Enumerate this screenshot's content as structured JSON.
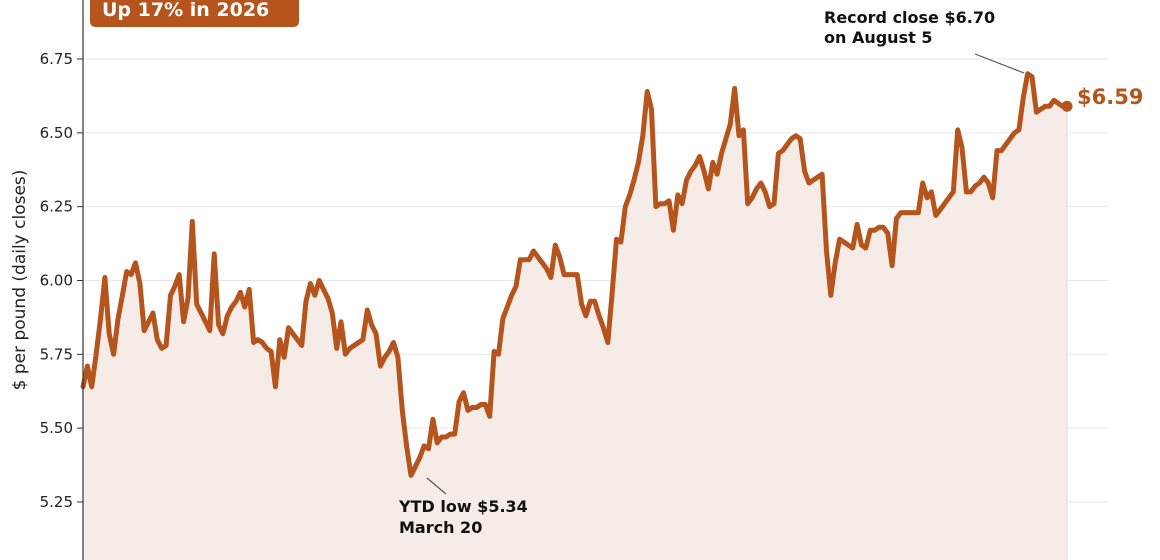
{
  "badge": {
    "text": "Up 17% in 2026"
  },
  "colors": {
    "line": "#B5541C",
    "fill": "#F6ECE7",
    "grid": "#E6E6E6",
    "axis": "#333333"
  },
  "end_label": "$6.59",
  "annotations": [
    {
      "line1": "Record close $6.70",
      "line2": "on August 5",
      "date": "2026-08-05",
      "value": 6.7
    },
    {
      "line1": "YTD low $5.34",
      "line2": "March 20",
      "date": "2026-03-20",
      "value": 5.34
    }
  ],
  "chart_data": {
    "type": "area",
    "title": "",
    "xlabel": "",
    "ylabel": "$ per pound (daily closes)",
    "ylim": [
      5.1,
      6.9
    ],
    "yticks": [
      5.25,
      5.5,
      5.75,
      6.0,
      6.25,
      6.5,
      6.75
    ],
    "ytick_labels": [
      "5.25",
      "5.50",
      "5.75",
      "6.00",
      "6.25",
      "6.50",
      "6.75"
    ],
    "grid": "horizontal",
    "series": [
      {
        "values": [
          5.64,
          5.71,
          5.64,
          5.75,
          5.87,
          6.01,
          5.82,
          5.75,
          5.87,
          5.95,
          6.03,
          6.02,
          6.06,
          5.99,
          5.83,
          5.86,
          5.89,
          5.8,
          5.77,
          5.78,
          5.95,
          5.98,
          6.02,
          5.86,
          5.94,
          6.2,
          5.92,
          5.89,
          5.86,
          5.83,
          6.09,
          5.85,
          5.82,
          5.88,
          5.91,
          5.93,
          5.96,
          5.91,
          5.97,
          5.79,
          5.8,
          5.79,
          5.77,
          5.76,
          5.64,
          5.8,
          5.74,
          5.84,
          5.82,
          5.8,
          5.78,
          5.93,
          5.99,
          5.95,
          6.0,
          5.97,
          5.94,
          5.89,
          5.77,
          5.86,
          5.75,
          5.77,
          5.78,
          5.79,
          5.8,
          5.9,
          5.85,
          5.82,
          5.71,
          5.74,
          5.76,
          5.79,
          5.74,
          5.56,
          5.44,
          5.34,
          5.37,
          5.4,
          5.44,
          5.43,
          5.53,
          5.45,
          5.47,
          5.47,
          5.48,
          5.48,
          5.59,
          5.62,
          5.56,
          5.57,
          5.57,
          5.58,
          5.58,
          5.54,
          5.76,
          5.75,
          5.87,
          5.91,
          5.95,
          5.98,
          6.07,
          6.07,
          6.07,
          6.1,
          6.08,
          6.06,
          6.04,
          6.01,
          6.12,
          6.08,
          6.02,
          6.02,
          6.02,
          6.02,
          5.92,
          5.88,
          5.93,
          5.93,
          5.88,
          5.84,
          5.79,
          5.96,
          6.14,
          6.13,
          6.25,
          6.29,
          6.34,
          6.4,
          6.49,
          6.64,
          6.58,
          6.25,
          6.26,
          6.26,
          6.27,
          6.17,
          6.29,
          6.26,
          6.34,
          6.37,
          6.39,
          6.42,
          6.37,
          6.31,
          6.4,
          6.36,
          6.43,
          6.48,
          6.53,
          6.65,
          6.49,
          6.51,
          6.26,
          6.28,
          6.31,
          6.33,
          6.3,
          6.25,
          6.26,
          6.43,
          6.44,
          6.46,
          6.48,
          6.49,
          6.48,
          6.37,
          6.33,
          6.34,
          6.35,
          6.36,
          6.1,
          5.95,
          6.06,
          6.14,
          6.13,
          6.12,
          6.11,
          6.19,
          6.12,
          6.11,
          6.17,
          6.17,
          6.18,
          6.18,
          6.16,
          6.05,
          6.21,
          6.23,
          6.23,
          6.23,
          6.23,
          6.23,
          6.33,
          6.28,
          6.3,
          6.22,
          6.24,
          6.26,
          6.28,
          6.3,
          6.51,
          6.45,
          6.3,
          6.3,
          6.32,
          6.33,
          6.35,
          6.33,
          6.28,
          6.44,
          6.44,
          6.46,
          6.48,
          6.5,
          6.51,
          6.62,
          6.7,
          6.69,
          6.57,
          6.58,
          6.59,
          6.59,
          6.61,
          6.6,
          6.59,
          6.59
        ]
      }
    ]
  }
}
